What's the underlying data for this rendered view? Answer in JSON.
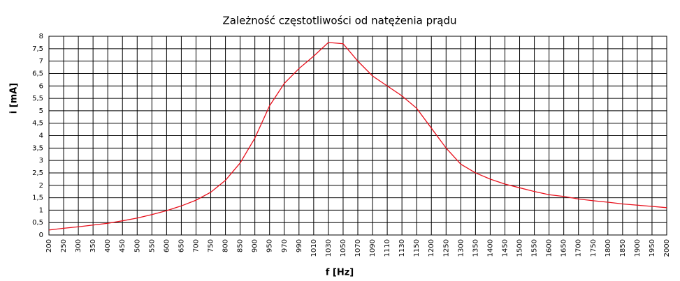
{
  "chart_data": {
    "type": "line",
    "title": "Zależność częstotliwości od natężenia prądu",
    "x_label": "f [Hz]",
    "y_label": "i [mA]",
    "categories": [
      "200",
      "250",
      "300",
      "350",
      "400",
      "450",
      "500",
      "550",
      "600",
      "650",
      "700",
      "750",
      "800",
      "850",
      "900",
      "950",
      "970",
      "990",
      "1010",
      "1030",
      "1050",
      "1070",
      "1090",
      "1110",
      "1130",
      "1150",
      "1200",
      "1250",
      "1300",
      "1350",
      "1400",
      "1450",
      "1500",
      "1550",
      "1600",
      "1650",
      "1700",
      "1750",
      "1800",
      "1850",
      "1900",
      "1950",
      "2000"
    ],
    "values": [
      0.2,
      0.27,
      0.33,
      0.4,
      0.47,
      0.57,
      0.68,
      0.82,
      0.98,
      1.17,
      1.4,
      1.72,
      2.2,
      2.9,
      3.9,
      5.2,
      6.1,
      6.7,
      7.2,
      7.75,
      7.7,
      7.0,
      6.4,
      6.0,
      5.6,
      5.1,
      4.3,
      3.5,
      2.85,
      2.5,
      2.25,
      2.05,
      1.9,
      1.75,
      1.62,
      1.55,
      1.45,
      1.38,
      1.32,
      1.25,
      1.2,
      1.15,
      1.1
    ],
    "color": "#e8101c",
    "ylim": [
      0,
      8
    ],
    "yticks": [
      0,
      {
        "value": 0.5,
        "label": "0,5"
      },
      1,
      {
        "value": 1.5,
        "label": "1,5"
      },
      2,
      {
        "value": 2.5,
        "label": "2,5"
      },
      3,
      {
        "value": 3.5,
        "label": "3,5"
      },
      4,
      {
        "value": 4.5,
        "label": "4,5"
      },
      5,
      {
        "value": 5.5,
        "label": "5,5"
      },
      6,
      {
        "value": 6.5,
        "label": "6,5"
      },
      7,
      {
        "value": 7.5,
        "label": "7,5"
      },
      8
    ],
    "grid": true
  }
}
